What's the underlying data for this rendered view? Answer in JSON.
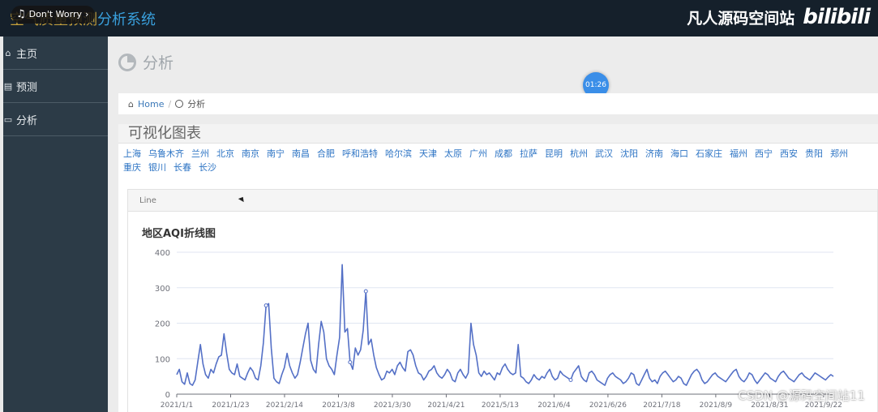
{
  "topbar": {
    "title_prefix": "空气质量预测",
    "title_accent": "分析系统",
    "music_label": "Don't Worry",
    "brand_text": "凡人源码空间站",
    "brand_logo": "bilibili"
  },
  "sidebar": {
    "items": [
      {
        "label": "主页",
        "icon": "home-icon"
      },
      {
        "label": "预测",
        "icon": "document-icon"
      },
      {
        "label": "分析",
        "icon": "chat-icon"
      }
    ]
  },
  "page": {
    "heading": "分析",
    "timer": "01:26"
  },
  "breadcrumb": {
    "home": "Home",
    "separator": "/",
    "current": "分析"
  },
  "panel": {
    "title": "可视化图表",
    "cities": [
      "上海",
      "乌鲁木齐",
      "兰州",
      "北京",
      "南京",
      "南宁",
      "南昌",
      "合肥",
      "呼和浩特",
      "哈尔滨",
      "天津",
      "太原",
      "广州",
      "成都",
      "拉萨",
      "昆明",
      "杭州",
      "武汉",
      "沈阳",
      "济南",
      "海口",
      "石家庄",
      "福州",
      "西宁",
      "西安",
      "贵阳",
      "郑州",
      "重庆",
      "银川",
      "长春",
      "长沙"
    ],
    "chart_tab": "Line"
  },
  "chart_data": {
    "type": "line",
    "title": "地区AQI折线图",
    "ylim": [
      0,
      400
    ],
    "y_ticks": [
      0,
      100,
      200,
      300,
      400
    ],
    "x_tick_labels": [
      "2021/1/1",
      "2021/1/23",
      "2021/2/14",
      "2021/3/8",
      "2021/3/30",
      "2021/4/21",
      "2021/5/13",
      "2021/6/4",
      "2021/6/26",
      "2021/7/18",
      "2021/8/9",
      "2021/8/31",
      "2021/9/22"
    ],
    "x_range": [
      "2021/1/1",
      "2021/9/30"
    ],
    "line_color": "#5470c6",
    "values": [
      55,
      70,
      35,
      28,
      60,
      30,
      25,
      40,
      90,
      140,
      85,
      55,
      45,
      70,
      60,
      85,
      105,
      110,
      170,
      115,
      70,
      60,
      55,
      85,
      50,
      45,
      40,
      60,
      75,
      65,
      45,
      40,
      80,
      145,
      250,
      255,
      130,
      45,
      35,
      30,
      55,
      75,
      115,
      80,
      60,
      45,
      55,
      90,
      130,
      170,
      200,
      95,
      70,
      60,
      140,
      205,
      175,
      100,
      80,
      70,
      55,
      110,
      160,
      365,
      175,
      185,
      90,
      70,
      130,
      110,
      125,
      180,
      290,
      140,
      155,
      110,
      75,
      55,
      40,
      45,
      65,
      60,
      70,
      55,
      80,
      90,
      75,
      65,
      120,
      125,
      110,
      80,
      60,
      55,
      40,
      50,
      65,
      70,
      80,
      60,
      50,
      45,
      55,
      70,
      60,
      40,
      35,
      60,
      70,
      55,
      45,
      60,
      200,
      140,
      110,
      60,
      50,
      65,
      55,
      60,
      50,
      40,
      60,
      55,
      75,
      85,
      70,
      60,
      55,
      60,
      140,
      50,
      45,
      35,
      30,
      40,
      55,
      45,
      40,
      50,
      45,
      60,
      70,
      50,
      40,
      45,
      65,
      55,
      50,
      45,
      40,
      60,
      70,
      80,
      50,
      40,
      35,
      60,
      65,
      55,
      40,
      35,
      30,
      25,
      45,
      55,
      60,
      50,
      45,
      40,
      30,
      35,
      45,
      60,
      55,
      30,
      25,
      40,
      55,
      70,
      45,
      35,
      40,
      30,
      50,
      60,
      65,
      55,
      45,
      35,
      40,
      50,
      45,
      30,
      25,
      40,
      55,
      65,
      70,
      60,
      40,
      30,
      35,
      45,
      55,
      60,
      50,
      45,
      40,
      35,
      45,
      55,
      65,
      70,
      50,
      40,
      35,
      45,
      60,
      55,
      40,
      30,
      40,
      50,
      60,
      55,
      45,
      40,
      35,
      50,
      60,
      65,
      55,
      45,
      40,
      35,
      45,
      55,
      60,
      50,
      45,
      40,
      50,
      60,
      55,
      50,
      45,
      40,
      48,
      55,
      50
    ]
  },
  "watermark": "CSDN @源码空间站11"
}
